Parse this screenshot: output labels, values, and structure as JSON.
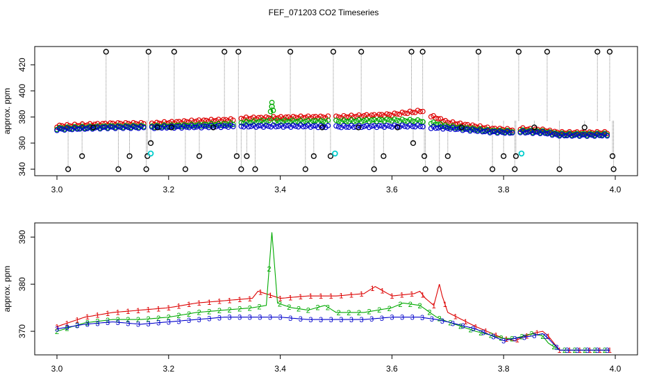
{
  "title": "FEF_071203  CO2 Timeseries",
  "chart_data": [
    {
      "type": "scatter",
      "ylabel": "approx. ppm",
      "xlim": [
        3.0,
        4.0
      ],
      "ylim": [
        335,
        434
      ],
      "xticks": [
        {
          "v": 3.0,
          "label": "3.0"
        },
        {
          "v": 3.2,
          "label": "3.2"
        },
        {
          "v": 3.4,
          "label": "3.4"
        },
        {
          "v": 3.6,
          "label": "3.6"
        },
        {
          "v": 3.8,
          "label": "3.8"
        },
        {
          "v": 4.0,
          "label": "4.0"
        }
      ],
      "yticks": [
        {
          "v": 340,
          "label": "340"
        },
        {
          "v": 360,
          "label": "360"
        },
        {
          "v": 380,
          "label": "380"
        },
        {
          "v": 400,
          "label": "400"
        },
        {
          "v": 420,
          "label": "420"
        }
      ],
      "series": [
        {
          "name": "red",
          "color": "#dd0000",
          "segments": [
            [
              [
                3.0,
                371
              ],
              [
                3.1,
                373
              ],
              [
                3.16,
                373
              ]
            ],
            [
              [
                3.17,
                373
              ],
              [
                3.25,
                375
              ],
              [
                3.32,
                376
              ]
            ],
            [
              [
                3.33,
                377
              ],
              [
                3.45,
                378
              ],
              [
                3.49,
                378
              ]
            ],
            [
              [
                3.5,
                378
              ],
              [
                3.6,
                380
              ],
              [
                3.66,
                383
              ]
            ],
            [
              [
                3.67,
                379
              ],
              [
                3.7,
                374
              ],
              [
                3.78,
                369
              ],
              [
                3.82,
                368
              ]
            ],
            [
              [
                3.83,
                369
              ],
              [
                3.87,
                368
              ],
              [
                3.9,
                366
              ],
              [
                3.99,
                366
              ]
            ]
          ]
        },
        {
          "name": "green",
          "color": "#00aa00",
          "segments": [
            [
              [
                3.0,
                370.5
              ],
              [
                3.1,
                372
              ],
              [
                3.16,
                372
              ]
            ],
            [
              [
                3.17,
                372
              ],
              [
                3.25,
                373
              ],
              [
                3.32,
                374
              ]
            ],
            [
              [
                3.33,
                375
              ],
              [
                3.38,
                376
              ],
              [
                3.385,
                391
              ],
              [
                3.39,
                376
              ],
              [
                3.45,
                376
              ],
              [
                3.49,
                376
              ]
            ],
            [
              [
                3.5,
                376
              ],
              [
                3.6,
                377
              ],
              [
                3.66,
                376
              ]
            ],
            [
              [
                3.67,
                375
              ],
              [
                3.7,
                372
              ],
              [
                3.78,
                368.5
              ],
              [
                3.82,
                368
              ]
            ],
            [
              [
                3.83,
                368.5
              ],
              [
                3.87,
                368
              ],
              [
                3.9,
                366
              ],
              [
                3.99,
                366
              ]
            ]
          ]
        },
        {
          "name": "blue",
          "color": "#0000cc",
          "segments": [
            [
              [
                3.0,
                370.5
              ],
              [
                3.1,
                372
              ],
              [
                3.16,
                372
              ]
            ],
            [
              [
                3.17,
                372
              ],
              [
                3.25,
                372.5
              ],
              [
                3.32,
                373
              ]
            ],
            [
              [
                3.33,
                373
              ],
              [
                3.45,
                373
              ],
              [
                3.49,
                372.5
              ]
            ],
            [
              [
                3.5,
                372.5
              ],
              [
                3.6,
                373
              ],
              [
                3.66,
                373
              ]
            ],
            [
              [
                3.67,
                372
              ],
              [
                3.7,
                371.5
              ],
              [
                3.78,
                368.5
              ],
              [
                3.82,
                368
              ]
            ],
            [
              [
                3.83,
                368.5
              ],
              [
                3.87,
                368
              ],
              [
                3.9,
                366
              ],
              [
                3.99,
                366
              ]
            ]
          ]
        },
        {
          "name": "black",
          "color": "#000000",
          "points": [
            [
              3.02,
              340
            ],
            [
              3.045,
              350
            ],
            [
              3.065,
              372
            ],
            [
              3.088,
              430
            ],
            [
              3.11,
              340
            ],
            [
              3.13,
              350
            ],
            [
              3.16,
              340
            ],
            [
              3.162,
              350
            ],
            [
              3.164,
              430
            ],
            [
              3.168,
              360
            ],
            [
              3.18,
              372
            ],
            [
              3.205,
              372
            ],
            [
              3.21,
              430
            ],
            [
              3.23,
              340
            ],
            [
              3.255,
              350
            ],
            [
              3.28,
              372
            ],
            [
              3.3,
              430
            ],
            [
              3.322,
              350
            ],
            [
              3.325,
              430
            ],
            [
              3.33,
              340
            ],
            [
              3.34,
              350
            ],
            [
              3.355,
              340
            ],
            [
              3.418,
              430
            ],
            [
              3.445,
              340
            ],
            [
              3.46,
              350
            ],
            [
              3.475,
              372
            ],
            [
              3.49,
              350
            ],
            [
              3.495,
              430
            ],
            [
              3.54,
              372
            ],
            [
              3.545,
              430
            ],
            [
              3.568,
              340
            ],
            [
              3.585,
              350
            ],
            [
              3.61,
              372
            ],
            [
              3.635,
              430
            ],
            [
              3.638,
              360
            ],
            [
              3.655,
              430
            ],
            [
              3.658,
              350
            ],
            [
              3.66,
              340
            ],
            [
              3.685,
              340
            ],
            [
              3.7,
              350
            ],
            [
              3.725,
              372
            ],
            [
              3.755,
              430
            ],
            [
              3.78,
              340
            ],
            [
              3.8,
              350
            ],
            [
              3.82,
              340
            ],
            [
              3.822,
              350
            ],
            [
              3.827,
              430
            ],
            [
              3.855,
              372
            ],
            [
              3.878,
              430
            ],
            [
              3.9,
              340
            ],
            [
              3.945,
              372
            ],
            [
              3.968,
              430
            ],
            [
              3.99,
              430
            ],
            [
              3.995,
              350
            ],
            [
              3.997,
              340
            ]
          ]
        },
        {
          "name": "cyan",
          "color": "#00cccc",
          "points": [
            [
              3.168,
              352
            ],
            [
              3.498,
              352
            ],
            [
              3.832,
              352
            ]
          ]
        },
        {
          "name": "green-spike",
          "color": "#00aa00",
          "points": [
            [
              3.385,
              388
            ]
          ]
        }
      ]
    },
    {
      "type": "line",
      "ylabel": "approx. ppm",
      "xlim": [
        3.0,
        4.0
      ],
      "ylim": [
        365,
        393
      ],
      "xticks": [
        {
          "v": 3.0,
          "label": "3.0"
        },
        {
          "v": 3.2,
          "label": "3.2"
        },
        {
          "v": 3.4,
          "label": "3.4"
        },
        {
          "v": 3.6,
          "label": "3.6"
        },
        {
          "v": 3.8,
          "label": "3.8"
        },
        {
          "v": 4.0,
          "label": "4.0"
        }
      ],
      "yticks": [
        {
          "v": 370,
          "label": "370"
        },
        {
          "v": 380,
          "label": "380"
        },
        {
          "v": 390,
          "label": "390"
        }
      ],
      "series": [
        {
          "name": "1",
          "color": "#dd0000",
          "marker": "1",
          "points": [
            [
              3.0,
              371
            ],
            [
              3.05,
              373
            ],
            [
              3.1,
              374
            ],
            [
              3.15,
              374.5
            ],
            [
              3.2,
              375
            ],
            [
              3.25,
              376
            ],
            [
              3.3,
              376.5
            ],
            [
              3.35,
              377
            ],
            [
              3.36,
              378.5
            ],
            [
              3.4,
              377
            ],
            [
              3.45,
              377.5
            ],
            [
              3.5,
              377.5
            ],
            [
              3.55,
              378
            ],
            [
              3.57,
              379.5
            ],
            [
              3.6,
              377.5
            ],
            [
              3.64,
              378
            ],
            [
              3.65,
              378.5
            ],
            [
              3.66,
              377
            ],
            [
              3.675,
              375.5
            ],
            [
              3.685,
              380
            ],
            [
              3.69,
              377.5
            ],
            [
              3.7,
              374
            ],
            [
              3.75,
              371
            ],
            [
              3.8,
              368.5
            ],
            [
              3.82,
              368
            ],
            [
              3.85,
              369.5
            ],
            [
              3.87,
              370
            ],
            [
              3.88,
              369
            ],
            [
              3.9,
              366
            ],
            [
              3.95,
              366
            ],
            [
              3.99,
              366
            ]
          ]
        },
        {
          "name": "2",
          "color": "#00aa00",
          "marker": "2",
          "points": [
            [
              3.0,
              370
            ],
            [
              3.05,
              371.8
            ],
            [
              3.1,
              372.5
            ],
            [
              3.15,
              372.5
            ],
            [
              3.2,
              373
            ],
            [
              3.25,
              374
            ],
            [
              3.3,
              374.5
            ],
            [
              3.35,
              375
            ],
            [
              3.375,
              375.5
            ],
            [
              3.385,
              391
            ],
            [
              3.395,
              376
            ],
            [
              3.42,
              375
            ],
            [
              3.45,
              374.5
            ],
            [
              3.48,
              375.5
            ],
            [
              3.5,
              374
            ],
            [
              3.55,
              374
            ],
            [
              3.6,
              375
            ],
            [
              3.62,
              376
            ],
            [
              3.65,
              375.5
            ],
            [
              3.68,
              373
            ],
            [
              3.7,
              372
            ],
            [
              3.75,
              370
            ],
            [
              3.8,
              368.5
            ],
            [
              3.82,
              368.5
            ],
            [
              3.85,
              369.5
            ],
            [
              3.87,
              369
            ],
            [
              3.88,
              367.5
            ],
            [
              3.9,
              366
            ],
            [
              3.95,
              366
            ],
            [
              3.99,
              366
            ]
          ]
        },
        {
          "name": "3",
          "color": "#0000cc",
          "marker": "3",
          "points": [
            [
              3.0,
              370.5
            ],
            [
              3.05,
              371.5
            ],
            [
              3.1,
              372
            ],
            [
              3.15,
              371.5
            ],
            [
              3.2,
              372
            ],
            [
              3.25,
              372.5
            ],
            [
              3.3,
              373
            ],
            [
              3.35,
              373
            ],
            [
              3.4,
              373
            ],
            [
              3.45,
              372.5
            ],
            [
              3.5,
              372.5
            ],
            [
              3.55,
              372.5
            ],
            [
              3.6,
              373
            ],
            [
              3.65,
              373
            ],
            [
              3.68,
              372.5
            ],
            [
              3.7,
              372
            ],
            [
              3.75,
              370.5
            ],
            [
              3.8,
              368
            ],
            [
              3.82,
              368.5
            ],
            [
              3.85,
              369
            ],
            [
              3.87,
              369.5
            ],
            [
              3.88,
              368.5
            ],
            [
              3.9,
              366
            ],
            [
              3.95,
              366
            ],
            [
              3.99,
              366
            ]
          ]
        }
      ]
    }
  ]
}
